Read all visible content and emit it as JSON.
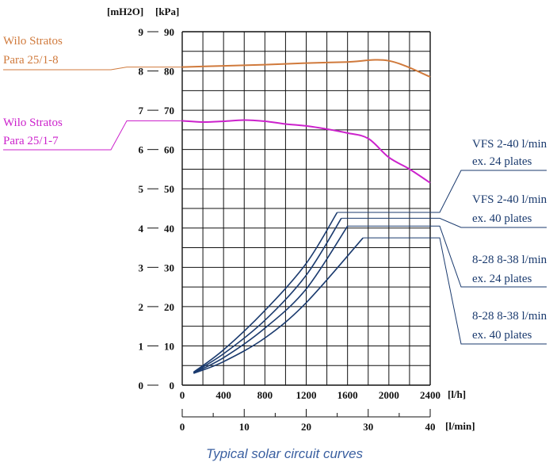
{
  "chart_data": {
    "type": "line",
    "caption": "Typical solar circuit curves",
    "y_units": {
      "mh2o": "[mH2O]",
      "kpa": "[kPa]"
    },
    "x_units": {
      "lh": "[l/h]",
      "lmin": "[l/min]"
    },
    "x_range": [
      0,
      2400
    ],
    "y_range_kpa": [
      0,
      90
    ],
    "x_ticks_lh": [
      "0",
      "400",
      "800",
      "1200",
      "1600",
      "2000",
      "2400"
    ],
    "x_ticks_lmin": [
      "0",
      "10",
      "20",
      "30",
      "40"
    ],
    "y_ticks_mh2o": [
      "0",
      "1",
      "2",
      "3",
      "4",
      "5",
      "6",
      "7",
      "8",
      "9"
    ],
    "y_ticks_kpa": [
      "0",
      "10",
      "20",
      "30",
      "40",
      "50",
      "60",
      "70",
      "80",
      "90"
    ],
    "grid": true,
    "colors": {
      "pump8": "#d07a3c",
      "pump7": "#cc22cc",
      "hx": "#1a3a6e",
      "caption": "#3a5fa0"
    },
    "series": [
      {
        "name": "Wilo Stratos Para 25/1-8",
        "label_lines": [
          "Wilo Stratos",
          "Para 25/1-8"
        ],
        "color": "#d07a3c",
        "points": [
          [
            0,
            81
          ],
          [
            400,
            81.3
          ],
          [
            800,
            81.6
          ],
          [
            1200,
            82
          ],
          [
            1600,
            82.3
          ],
          [
            2000,
            82.6
          ],
          [
            2400,
            78.5
          ]
        ]
      },
      {
        "name": "Wilo Stratos Para 25/1-7",
        "label_lines": [
          "Wilo Stratos",
          "Para 25/1-7"
        ],
        "color": "#cc22cc",
        "points": [
          [
            0,
            67.3
          ],
          [
            200,
            67
          ],
          [
            400,
            67.2
          ],
          [
            600,
            67.5
          ],
          [
            800,
            67.2
          ],
          [
            1000,
            66.5
          ],
          [
            1200,
            66
          ],
          [
            1400,
            65.2
          ],
          [
            1600,
            64.2
          ],
          [
            1800,
            62.8
          ],
          [
            2000,
            58
          ],
          [
            2200,
            55
          ],
          [
            2400,
            51.5
          ]
        ]
      },
      {
        "name": "VFS 2-40 l/min ex. 24 plates",
        "label_lines": [
          "VFS 2-40 l/min",
          "ex. 24 plates"
        ],
        "color": "#1a3a6e",
        "points": [
          [
            110,
            3.3
          ],
          [
            400,
            9
          ],
          [
            800,
            19
          ],
          [
            1200,
            31
          ],
          [
            1500,
            44
          ]
        ]
      },
      {
        "name": "VFS 2-40 l/min ex. 40 plates",
        "label_lines": [
          "VFS 2-40 l/min",
          "ex. 40 plates"
        ],
        "color": "#1a3a6e",
        "points": [
          [
            110,
            3.2
          ],
          [
            400,
            8
          ],
          [
            800,
            16.5
          ],
          [
            1200,
            28
          ],
          [
            1540,
            42.5
          ]
        ]
      },
      {
        "name": "8-28 8-38 l/min ex. 24 plates",
        "label_lines": [
          "8-28 8-38 l/min",
          "ex. 24 plates"
        ],
        "color": "#1a3a6e",
        "points": [
          [
            110,
            3.1
          ],
          [
            400,
            7
          ],
          [
            800,
            14.5
          ],
          [
            1200,
            24.5
          ],
          [
            1600,
            40.5
          ]
        ]
      },
      {
        "name": "8-28 8-38 l/min ex. 40 plates",
        "label_lines": [
          "8-28 8-38 l/min",
          "ex. 40 plates"
        ],
        "color": "#1a3a6e",
        "points": [
          [
            110,
            3.0
          ],
          [
            400,
            6
          ],
          [
            800,
            12
          ],
          [
            1200,
            21
          ],
          [
            1750,
            37.5
          ]
        ]
      }
    ]
  }
}
